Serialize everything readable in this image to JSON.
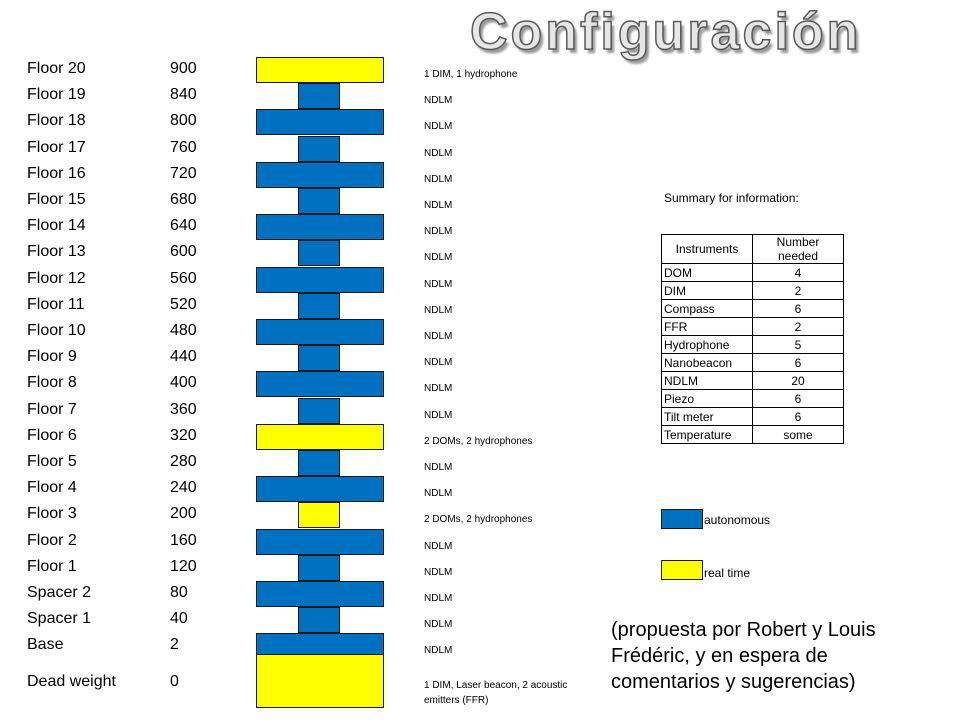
{
  "title": "Configuración",
  "colors": {
    "autonomous": "#0070c0",
    "real_time": "#ffff00"
  },
  "floors": [
    {
      "name": "Floor 20",
      "value": "900",
      "note": "1 DIM, 1 hydrophone",
      "type": "real_time",
      "wide": true
    },
    {
      "name": "Floor 19",
      "value": "840",
      "note": "NDLM",
      "type": "autonomous",
      "wide": false
    },
    {
      "name": "Floor 18",
      "value": "800",
      "note": "NDLM",
      "type": "autonomous",
      "wide": true
    },
    {
      "name": "Floor 17",
      "value": "760",
      "note": "NDLM",
      "type": "autonomous",
      "wide": false
    },
    {
      "name": "Floor 16",
      "value": "720",
      "note": "NDLM",
      "type": "autonomous",
      "wide": true
    },
    {
      "name": "Floor 15",
      "value": "680",
      "note": "NDLM",
      "type": "autonomous",
      "wide": false
    },
    {
      "name": "Floor 14",
      "value": "640",
      "note": "NDLM",
      "type": "autonomous",
      "wide": true
    },
    {
      "name": "Floor 13",
      "value": "600",
      "note": "NDLM",
      "type": "autonomous",
      "wide": false
    },
    {
      "name": "Floor 12",
      "value": "560",
      "note": "NDLM",
      "type": "autonomous",
      "wide": true
    },
    {
      "name": "Floor 11",
      "value": "520",
      "note": "NDLM",
      "type": "autonomous",
      "wide": false
    },
    {
      "name": "Floor 10",
      "value": "480",
      "note": "NDLM",
      "type": "autonomous",
      "wide": true
    },
    {
      "name": "Floor 9",
      "value": "440",
      "note": "NDLM",
      "type": "autonomous",
      "wide": false
    },
    {
      "name": "Floor 8",
      "value": "400",
      "note": "NDLM",
      "type": "autonomous",
      "wide": true
    },
    {
      "name": "Floor 7",
      "value": "360",
      "note": "NDLM",
      "type": "autonomous",
      "wide": false
    },
    {
      "name": "Floor 6",
      "value": "320",
      "note": "2 DOMs, 2 hydrophones",
      "type": "real_time",
      "wide": true
    },
    {
      "name": "Floor 5",
      "value": "280",
      "note": "NDLM",
      "type": "autonomous",
      "wide": false
    },
    {
      "name": "Floor 4",
      "value": "240",
      "note": "NDLM",
      "type": "autonomous",
      "wide": true
    },
    {
      "name": "Floor 3",
      "value": "200",
      "note": "2 DOMs, 2 hydrophones",
      "type": "real_time",
      "wide": false
    },
    {
      "name": "Floor 2",
      "value": "160",
      "note": "NDLM",
      "type": "autonomous",
      "wide": true
    },
    {
      "name": "Floor 1",
      "value": "120",
      "note": "NDLM",
      "type": "autonomous",
      "wide": false
    },
    {
      "name": "Spacer 2",
      "value": "80",
      "note": "NDLM",
      "type": "autonomous",
      "wide": true
    },
    {
      "name": "Spacer 1",
      "value": "40",
      "note": "NDLM",
      "type": "autonomous",
      "wide": false
    },
    {
      "name": "Base",
      "value": "2",
      "note": "NDLM",
      "type": "autonomous",
      "wide": true
    },
    {
      "name": "Dead weight",
      "value": "0",
      "note": "1 DIM, Laser beacon, 2 acoustic emitters (FFR)",
      "type": "real_time",
      "wide": true
    }
  ],
  "summary": {
    "label": "Summary for information:",
    "headers": [
      "Instruments",
      "Number needed"
    ],
    "rows": [
      [
        "DOM",
        "4"
      ],
      [
        "DIM",
        "2"
      ],
      [
        "Compass",
        "6"
      ],
      [
        "FFR",
        "2"
      ],
      [
        "Hydrophone",
        "5"
      ],
      [
        "Nanobeacon",
        "6"
      ],
      [
        "NDLM",
        "20"
      ],
      [
        "Piezo",
        "6"
      ],
      [
        "Tilt meter",
        "6"
      ],
      [
        "Temperature",
        "some"
      ]
    ]
  },
  "legend": [
    {
      "label": "autonomous",
      "type": "autonomous"
    },
    {
      "label": "real time",
      "type": "real_time"
    }
  ],
  "comment": "(propuesta por Robert y Louis Frédéric, y en espera de comentarios y sugerencias)"
}
